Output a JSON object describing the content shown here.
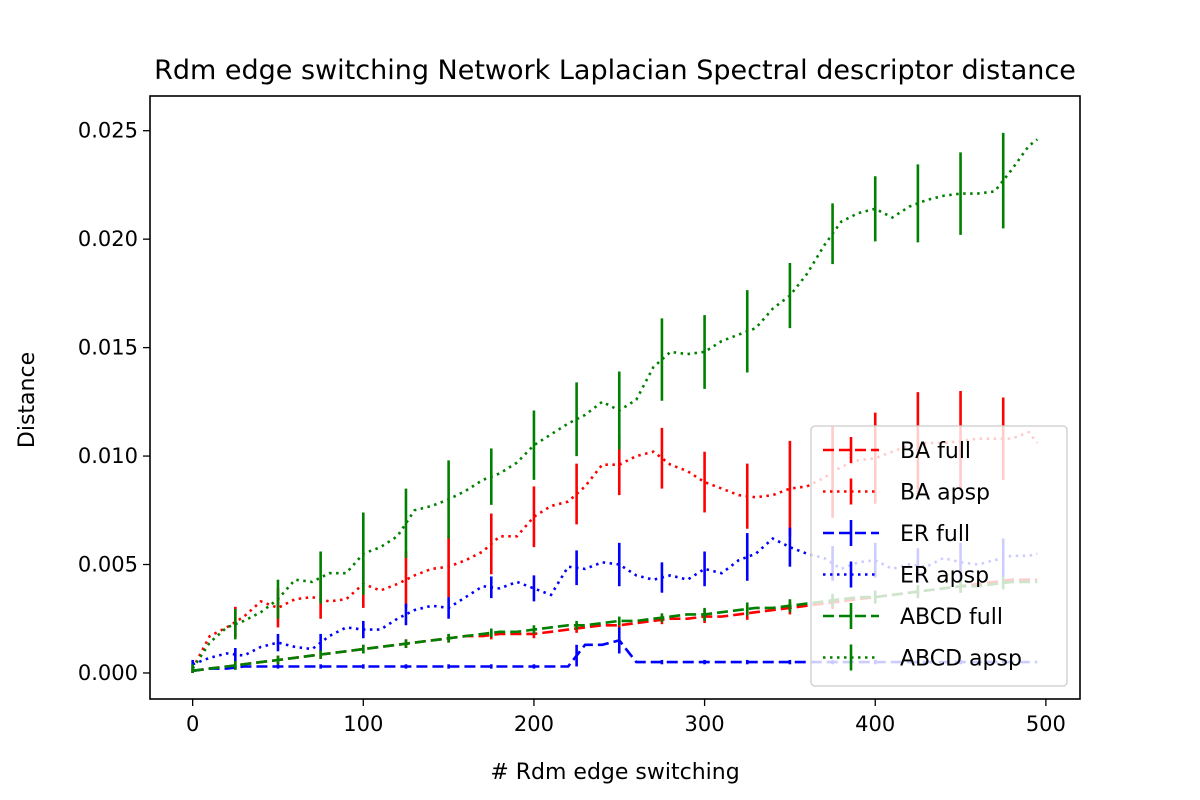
{
  "chart_data": {
    "type": "line",
    "title": "Rdm edge switching Network Laplacian Spectral descriptor distance",
    "xlabel": "# Rdm edge switching",
    "ylabel": "Distance",
    "xlim": [
      -25,
      520
    ],
    "ylim": [
      -0.0012,
      0.0266
    ],
    "xticks": [
      0,
      100,
      200,
      300,
      400,
      500
    ],
    "yticks": [
      0.0,
      0.005,
      0.01,
      0.015,
      0.02,
      0.025
    ],
    "xtick_labels": [
      "0",
      "100",
      "200",
      "300",
      "400",
      "500"
    ],
    "ytick_labels": [
      "0.000",
      "0.005",
      "0.010",
      "0.015",
      "0.020",
      "0.025"
    ],
    "grid": false,
    "legend_position": "lower-right",
    "x": [
      0,
      10,
      20,
      30,
      40,
      50,
      60,
      70,
      80,
      90,
      100,
      110,
      120,
      130,
      140,
      150,
      160,
      170,
      180,
      190,
      200,
      210,
      220,
      230,
      240,
      250,
      260,
      270,
      280,
      290,
      300,
      310,
      320,
      330,
      340,
      350,
      360,
      370,
      380,
      390,
      400,
      410,
      420,
      430,
      440,
      450,
      460,
      470,
      480,
      490,
      495
    ],
    "errorbar_x": [
      0,
      25,
      50,
      75,
      100,
      125,
      150,
      175,
      200,
      225,
      250,
      275,
      300,
      325,
      350,
      375,
      400,
      425,
      450,
      475
    ],
    "series": [
      {
        "name": "BA full",
        "color": "#ff0000",
        "linestyle": "dashed",
        "y": [
          0.0001,
          0.0002,
          0.0003,
          0.0004,
          0.0005,
          0.0006,
          0.0007,
          0.0008,
          0.0009,
          0.001,
          0.0011,
          0.0012,
          0.0013,
          0.0014,
          0.0015,
          0.0016,
          0.0017,
          0.0017,
          0.0018,
          0.0018,
          0.0018,
          0.0019,
          0.002,
          0.0021,
          0.0022,
          0.0022,
          0.0023,
          0.0024,
          0.0025,
          0.0025,
          0.0026,
          0.0026,
          0.0027,
          0.0028,
          0.0029,
          0.003,
          0.0031,
          0.0032,
          0.0033,
          0.0034,
          0.0035,
          0.0036,
          0.0037,
          0.0038,
          0.0039,
          0.004,
          0.0041,
          0.0042,
          0.0043,
          0.0043,
          0.0043
        ],
        "err": [
          0.0001,
          0.0002,
          0.0002,
          0.0002,
          0.0002,
          0.0002,
          0.0002,
          0.0002,
          0.0002,
          0.0002,
          0.0002,
          0.0002,
          0.0003,
          0.0003,
          0.0003,
          0.0003,
          0.0003,
          0.0003,
          0.0003,
          0.0003
        ]
      },
      {
        "name": "BA apsp",
        "color": "#ff0000",
        "linestyle": "dotted",
        "y": [
          0.0002,
          0.0017,
          0.0021,
          0.0026,
          0.0033,
          0.003,
          0.0034,
          0.0035,
          0.0033,
          0.0034,
          0.0041,
          0.0038,
          0.0041,
          0.0045,
          0.0048,
          0.0049,
          0.0052,
          0.0056,
          0.0063,
          0.0063,
          0.0072,
          0.0077,
          0.0079,
          0.0086,
          0.0096,
          0.0096,
          0.01,
          0.0102,
          0.0096,
          0.0093,
          0.0088,
          0.0085,
          0.0082,
          0.0081,
          0.0082,
          0.0085,
          0.0086,
          0.009,
          0.0095,
          0.0098,
          0.0099,
          0.0102,
          0.0105,
          0.0106,
          0.0106,
          0.0107,
          0.0108,
          0.0108,
          0.0108,
          0.0111,
          0.0106
        ],
        "err": [
          0.0002,
          0.0007,
          0.0009,
          0.0009,
          0.0011,
          0.0013,
          0.0014,
          0.0014,
          0.0014,
          0.0014,
          0.0014,
          0.0014,
          0.0014,
          0.0015,
          0.0022,
          0.0021,
          0.0021,
          0.0024,
          0.0023,
          0.0019
        ]
      },
      {
        "name": "ER full",
        "color": "#0000ff",
        "linestyle": "dashed",
        "y": [
          0.0001,
          0.0002,
          0.0002,
          0.0003,
          0.0003,
          0.0003,
          0.0003,
          0.0003,
          0.0003,
          0.0003,
          0.0003,
          0.0003,
          0.0003,
          0.0003,
          0.0003,
          0.0003,
          0.0003,
          0.0003,
          0.0003,
          0.0003,
          0.0003,
          0.0003,
          0.0003,
          0.0013,
          0.0013,
          0.0015,
          0.0005,
          0.0005,
          0.0005,
          0.0005,
          0.0005,
          0.0005,
          0.0005,
          0.0005,
          0.0005,
          0.0005,
          0.0005,
          0.0005,
          0.0005,
          0.0005,
          0.0005,
          0.0005,
          0.0005,
          0.0005,
          0.0005,
          0.0005,
          0.0005,
          0.0005,
          0.0005,
          0.0005,
          0.0005
        ],
        "err": [
          0.0001,
          0.0001,
          0.0001,
          0.0001,
          0.0001,
          0.0001,
          0.0001,
          0.0001,
          0.0001,
          0.0005,
          0.0006,
          0.0001,
          0.0001,
          0.0001,
          0.0001,
          0.0001,
          0.0001,
          0.0001,
          0.0001,
          0.0001
        ]
      },
      {
        "name": "ER apsp",
        "color": "#0000ff",
        "linestyle": "dotted",
        "y": [
          0.0004,
          0.0007,
          0.0009,
          0.0008,
          0.0012,
          0.0014,
          0.0012,
          0.0011,
          0.0017,
          0.0021,
          0.002,
          0.002,
          0.0025,
          0.0029,
          0.0031,
          0.003,
          0.0035,
          0.004,
          0.0039,
          0.0042,
          0.0039,
          0.0036,
          0.0049,
          0.0048,
          0.0051,
          0.005,
          0.0045,
          0.0043,
          0.0045,
          0.0043,
          0.0048,
          0.0046,
          0.0052,
          0.0055,
          0.0062,
          0.0058,
          0.0055,
          0.0053,
          0.0048,
          0.0051,
          0.0052,
          0.0048,
          0.005,
          0.0049,
          0.0053,
          0.0051,
          0.005,
          0.0052,
          0.0054,
          0.0054,
          0.0055
        ],
        "err": [
          0.0002,
          0.0003,
          0.0004,
          0.0004,
          0.0004,
          0.0005,
          0.0005,
          0.0005,
          0.0006,
          0.0008,
          0.001,
          0.0007,
          0.0008,
          0.0011,
          0.0009,
          0.0008,
          0.0008,
          0.0008,
          0.0009,
          0.0009
        ]
      },
      {
        "name": "ABCD full",
        "color": "#008000",
        "linestyle": "dashed",
        "y": [
          0.0001,
          0.0002,
          0.0003,
          0.0004,
          0.0005,
          0.0006,
          0.0007,
          0.0008,
          0.0009,
          0.001,
          0.0011,
          0.0012,
          0.0013,
          0.0014,
          0.0015,
          0.0016,
          0.0017,
          0.0018,
          0.0019,
          0.0019,
          0.002,
          0.0021,
          0.0022,
          0.0022,
          0.0023,
          0.0024,
          0.0024,
          0.0025,
          0.0026,
          0.0027,
          0.0027,
          0.0028,
          0.0029,
          0.003,
          0.003,
          0.0031,
          0.0032,
          0.0033,
          0.0034,
          0.0035,
          0.0035,
          0.0036,
          0.0037,
          0.0038,
          0.0039,
          0.004,
          0.004,
          0.0041,
          0.0042,
          0.0042,
          0.0042
        ],
        "err": [
          0.0001,
          0.0002,
          0.0002,
          0.0002,
          0.0002,
          0.0002,
          0.0002,
          0.0002,
          0.0002,
          0.0002,
          0.0002,
          0.0002,
          0.0003,
          0.0003,
          0.0003,
          0.0003,
          0.0003,
          0.0003,
          0.0003,
          0.0003
        ]
      },
      {
        "name": "ABCD apsp",
        "color": "#008000",
        "linestyle": "dotted",
        "y": [
          0.0002,
          0.0014,
          0.0021,
          0.0024,
          0.0028,
          0.0034,
          0.0043,
          0.0042,
          0.0046,
          0.0046,
          0.0055,
          0.0058,
          0.0063,
          0.0075,
          0.0077,
          0.008,
          0.0084,
          0.0089,
          0.0092,
          0.0097,
          0.0105,
          0.011,
          0.0115,
          0.0119,
          0.0125,
          0.0121,
          0.0126,
          0.0141,
          0.0148,
          0.0147,
          0.0148,
          0.0153,
          0.0156,
          0.0159,
          0.0168,
          0.0174,
          0.0184,
          0.0197,
          0.0208,
          0.0212,
          0.0214,
          0.021,
          0.0215,
          0.0218,
          0.022,
          0.0221,
          0.0221,
          0.0222,
          0.0232,
          0.0243,
          0.0246
        ],
        "err": [
          0.0002,
          0.0007,
          0.0009,
          0.0012,
          0.0019,
          0.0016,
          0.0018,
          0.0013,
          0.0016,
          0.0017,
          0.0018,
          0.0019,
          0.0017,
          0.0019,
          0.0015,
          0.0014,
          0.0015,
          0.0018,
          0.0019,
          0.0022
        ]
      }
    ]
  }
}
